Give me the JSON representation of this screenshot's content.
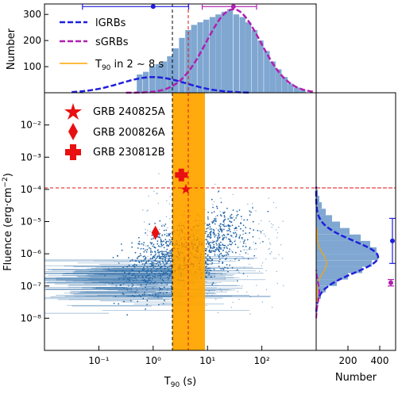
{
  "chart_data": [
    {
      "panel": "top-histogram",
      "type": "bar",
      "ylabel": "Number",
      "yticks": [
        "100",
        "200",
        "300"
      ],
      "ylim": [
        0,
        340
      ],
      "xscale": "log",
      "xlim": [
        0.01,
        1000
      ],
      "bins_x": [
        0.5,
        0.65,
        0.85,
        1.1,
        1.4,
        1.8,
        2.3,
        3.0,
        3.9,
        5.0,
        6.5,
        8.4,
        10.9,
        14,
        18,
        23,
        30,
        39,
        50,
        65,
        84,
        109,
        140,
        180,
        233,
        300,
        390,
        500
      ],
      "bins_y": [
        70,
        80,
        100,
        110,
        120,
        140,
        170,
        210,
        240,
        260,
        270,
        280,
        290,
        300,
        310,
        320,
        300,
        290,
        270,
        240,
        200,
        160,
        120,
        90,
        60,
        35,
        20,
        10
      ],
      "series": [
        {
          "name": "lGRBs",
          "color": "#1f1fdd",
          "style": "dashed"
        },
        {
          "name": "sGRBs",
          "color": "#b01fb0",
          "style": "dashed"
        },
        {
          "name": "T90 in 2 ~ 8 s",
          "color": "#ffa500",
          "style": "solid"
        }
      ],
      "lgrb_peak": [
        1.0,
        60
      ],
      "sgrb_peak": [
        30,
        320
      ],
      "error_bars": [
        {
          "center": 1.0,
          "low": 0.05,
          "high": 4.5,
          "y": 330,
          "color": "#1f1fdd"
        },
        {
          "center": 30,
          "low": 8,
          "high": 80,
          "y": 330,
          "color": "#b01fb0"
        }
      ],
      "vlines": [
        {
          "x": 2,
          "color": "#000000"
        },
        {
          "x": 4,
          "color": "#e01010"
        }
      ]
    },
    {
      "panel": "main-scatter",
      "type": "scatter",
      "xlabel_main": "T",
      "xlabel_sub": "90",
      "xlabel_unit": " (s)",
      "ylabel": "Fluence (erg·cm⁻²)",
      "xscale": "log",
      "yscale": "log",
      "xlim": [
        0.01,
        1000
      ],
      "ylim": [
        1e-09,
        0.1
      ],
      "xtick_labels": [
        "10⁻¹",
        "10⁰",
        "10¹",
        "10²"
      ],
      "ytick_labels": [
        "10⁻⁸",
        "10⁻⁷",
        "10⁻⁶",
        "10⁻⁵",
        "10⁻⁴",
        "10⁻³",
        "10⁻²"
      ],
      "shaded_band": {
        "x_min": 2,
        "x_max": 8,
        "color": "#ffa500"
      },
      "hline": {
        "y": 0.0001,
        "color": "#e01010"
      },
      "highlighted": [
        {
          "name": "GRB 240825A",
          "x": 4.0,
          "y": 0.0001,
          "marker": "star"
        },
        {
          "name": "GRB 200826A",
          "x": 1.1,
          "y": 4.5e-06,
          "marker": "diamond"
        },
        {
          "name": "GRB 230812B",
          "x": 3.3,
          "y": 0.00028,
          "marker": "plus"
        }
      ]
    },
    {
      "panel": "right-histogram",
      "type": "bar",
      "xlabel": "Number",
      "xtick_labels": [
        "200",
        "400"
      ],
      "xlim": [
        0,
        500
      ],
      "bins_y_logfluence": [
        -7.3,
        -7.1,
        -6.9,
        -6.7,
        -6.5,
        -6.3,
        -6.1,
        -5.9,
        -5.7,
        -5.5,
        -5.3,
        -5.1,
        -4.9,
        -4.7,
        -4.5,
        -4.3,
        -4.1
      ],
      "bins_count": [
        30,
        60,
        130,
        200,
        290,
        350,
        390,
        380,
        340,
        280,
        210,
        150,
        100,
        60,
        35,
        20,
        10
      ],
      "error_bars": [
        {
          "center": -5.6,
          "low": -6.3,
          "high": -4.9,
          "x": 480,
          "color": "#1f1fdd"
        },
        {
          "center": -6.9,
          "low": -7.0,
          "high": -6.8,
          "x": 470,
          "color": "#b01fb0"
        }
      ]
    }
  ]
}
